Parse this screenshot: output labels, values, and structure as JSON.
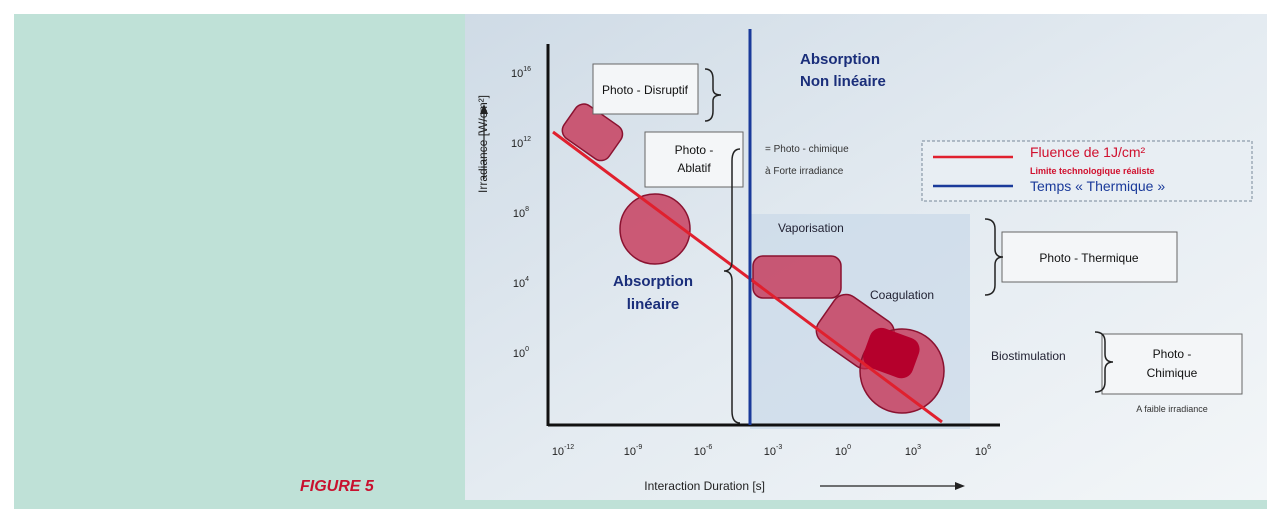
{
  "figure_label": "FIGURE 5",
  "axes": {
    "y_label": "Irradiance [W/cm²]",
    "x_label": "Interaction Duration [s]",
    "x_ticks": [
      {
        "base": "10",
        "exp": "-12"
      },
      {
        "base": "10",
        "exp": "-9"
      },
      {
        "base": "10",
        "exp": "-6"
      },
      {
        "base": "10",
        "exp": "-3"
      },
      {
        "base": "10",
        "exp": "0"
      },
      {
        "base": "10",
        "exp": "3"
      },
      {
        "base": "10",
        "exp": "6"
      }
    ],
    "y_ticks": [
      {
        "base": "10",
        "exp": "16"
      },
      {
        "base": "10",
        "exp": "12"
      },
      {
        "base": "10",
        "exp": "8"
      },
      {
        "base": "10",
        "exp": "4"
      },
      {
        "base": "10",
        "exp": "0"
      }
    ]
  },
  "labels": {
    "photo_disruptif": "Photo - Disruptif",
    "absorption_non_lineaire": [
      "Absorption",
      "Non linéaire"
    ],
    "photo_ablatif": [
      "Photo -",
      "Ablatif"
    ],
    "photochimique_forte": [
      "= Photo - chimique",
      "à Forte irradiance"
    ],
    "absorption_lineaire": [
      "Absorption",
      "linéaire"
    ],
    "vaporisation": "Vaporisation",
    "coagulation": "Coagulation",
    "biostimulation": "Biostimulation",
    "photo_thermique": "Photo - Thermique",
    "photo_chimique": [
      "Photo -",
      "Chimique"
    ],
    "faible_irradiance": "A faible irradiance"
  },
  "legend": {
    "fluence": "Fluence de 1J/cm²",
    "limite": "Limite technologique réaliste",
    "temps": "Temps « Thermique »"
  }
}
